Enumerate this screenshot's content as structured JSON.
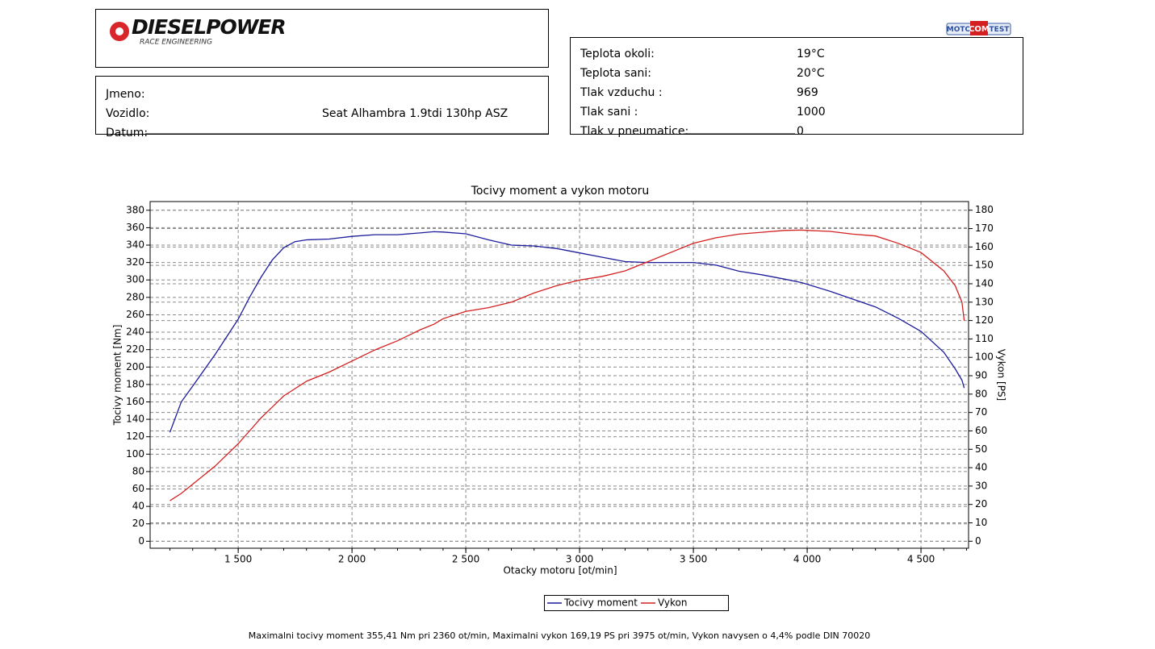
{
  "header": {
    "logo": "DIESELPOWER",
    "logo_sub": "RACE ENGINEERING",
    "brand": [
      "MOTO",
      "COM",
      "TEST"
    ],
    "left_rows": [
      {
        "label": "Jmeno:"
      },
      {
        "label": "Vozidlo:",
        "value": "Seat Alhambra 1.9tdi 130hp ASZ"
      },
      {
        "label": "Datum:"
      }
    ],
    "right_rows": [
      {
        "label": "Teplota okoli:",
        "value": "19°C"
      },
      {
        "label": "Teplota sani:",
        "value": "20°C"
      },
      {
        "label": "Tlak vzduchu :",
        "value": "969"
      },
      {
        "label": "Tlak sani :",
        "value": "1000"
      },
      {
        "label": "Tlak v pneumatice:",
        "value": "0"
      }
    ]
  },
  "chart_data": {
    "type": "line",
    "title": "Tocivy moment a vykon motoru",
    "x_label": "Otacky motoru [ot/min]",
    "y_label": "Tocivy moment [Nm]",
    "y2_label": "Vykon [PS]",
    "footnote": "Maximalni tocivy moment 355,41 Nm pri 2360 ot/min,  Maximalni vykon 169,19 PS pri 3975 ot/min,  Vykon navysen o 4,4% podle DIN 70020",
    "x": [
      1200,
      1250,
      1300,
      1400,
      1500,
      1550,
      1600,
      1650,
      1700,
      1750,
      1800,
      1900,
      2000,
      2100,
      2200,
      2300,
      2360,
      2400,
      2500,
      2600,
      2700,
      2800,
      2900,
      3000,
      3100,
      3200,
      3300,
      3400,
      3500,
      3600,
      3700,
      3800,
      3900,
      3975,
      4000,
      4100,
      4200,
      4300,
      4400,
      4500,
      4600,
      4650,
      4680,
      4690
    ],
    "series": [
      {
        "name": "Tocivy moment",
        "color": "#1c1c9c",
        "values": [
          125,
          160,
          178,
          215,
          255,
          280,
          303,
          323,
          337,
          344,
          346,
          347,
          350,
          352,
          352,
          354,
          355.4,
          355,
          353,
          346,
          340,
          339,
          336,
          331,
          326,
          321,
          320,
          320,
          320,
          317,
          310,
          306,
          301,
          297,
          295,
          287,
          278,
          269,
          256,
          241,
          217,
          198,
          185,
          176
        ]
      },
      {
        "name": "Vykon",
        "color": "#d42020",
        "axis": "y2",
        "values": [
          22,
          26,
          31,
          41,
          53,
          60,
          67,
          73,
          79,
          83,
          87,
          92,
          98,
          104,
          109,
          115,
          118,
          121,
          125,
          127,
          130,
          135,
          139,
          142,
          144,
          147,
          152,
          157,
          162,
          165,
          167,
          168,
          169,
          169.2,
          169,
          168.5,
          167,
          166,
          162,
          157,
          147,
          139,
          130,
          120
        ]
      }
    ],
    "xlim": [
      1113,
      4709
    ],
    "xticks": [
      {
        "value": 1500,
        "label": "1 500"
      },
      {
        "value": 2000,
        "label": "2 000"
      },
      {
        "value": 2500,
        "label": "2 500"
      },
      {
        "value": 3000,
        "label": "3 000"
      },
      {
        "value": 3500,
        "label": "3 500"
      },
      {
        "value": 4000,
        "label": "4 000"
      },
      {
        "value": 4500,
        "label": "4 500"
      }
    ],
    "ylim": [
      -8,
      390
    ],
    "yticks": [
      0,
      20,
      40,
      60,
      80,
      100,
      120,
      140,
      160,
      180,
      200,
      220,
      240,
      260,
      280,
      300,
      320,
      340,
      360,
      380
    ],
    "y2lim": [
      -3.8,
      184.7
    ],
    "y2ticks": [
      0,
      10,
      20,
      30,
      40,
      50,
      60,
      70,
      80,
      90,
      100,
      110,
      120,
      130,
      140,
      150,
      160,
      170,
      180
    ],
    "grid": true,
    "legend": "bottom"
  }
}
